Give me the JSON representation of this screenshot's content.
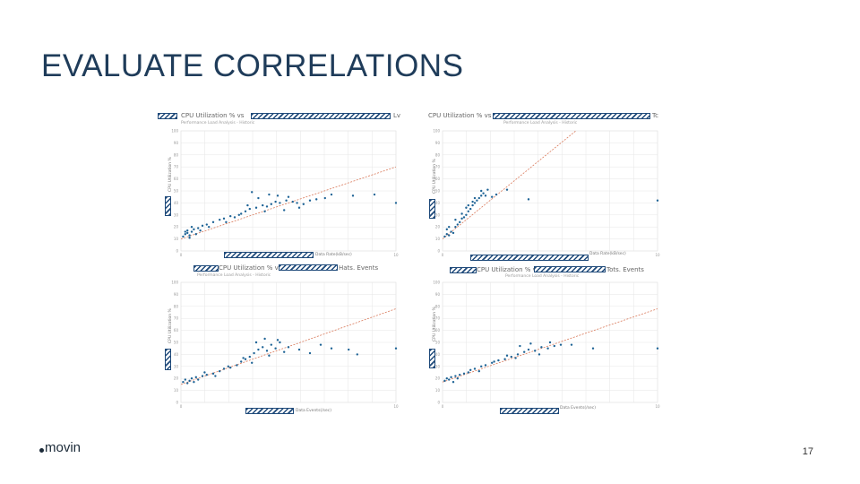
{
  "slide": {
    "title": "EVALUATE CORRELATIONS",
    "page_number": "17",
    "logo_text": "movin",
    "colors": {
      "title": "#1f3c5a",
      "points": "#1f6496",
      "trend": "#d9795a",
      "grid": "#e6e6e6",
      "redaction": "#1f4a7a"
    }
  },
  "charts": [
    {
      "title_prefix": "CPU Utilization % vs",
      "title_suffix": "Lv",
      "subtitle": "Performance Load Analysis - Historic",
      "ylabel": "CPU Utilization %",
      "xlabel": "Data Rate(kB/sec)"
    },
    {
      "title_prefix": "CPU Utilization % vs",
      "title_suffix": "Tc",
      "subtitle": "Performance Load Analysis - Historic",
      "ylabel": "CPU Utilization %",
      "xlabel": "Data Rate(kB/sec)"
    },
    {
      "title_prefix": "CPU Utilization % vs",
      "title_suffix": "Hats. Events",
      "subtitle": "Performance Load Analysis - Historic",
      "ylabel": "CPU Utilization %",
      "xlabel": "Data Events(/sec)"
    },
    {
      "title_prefix": "CPU Utilization % vs",
      "title_suffix": "Tots. Events",
      "subtitle": "Performance Load Analysis - Historic",
      "ylabel": "CPU Utilization %",
      "xlabel": "Data Events(/sec)"
    }
  ],
  "chart_data": [
    {
      "type": "scatter",
      "title": "CPU Utilization % vs",
      "ylabel": "CPU Utilization %",
      "xlabel": "Data Rate(kB/sec)",
      "xlim": [
        0,
        10
      ],
      "ylim": [
        0,
        100
      ],
      "x_ticks": [
        "0",
        "",
        "",
        "",
        "",
        "",
        "",
        "",
        "",
        "10"
      ],
      "y_ticks": [
        "0",
        "10",
        "20",
        "30",
        "40",
        "50",
        "60",
        "70",
        "80",
        "90",
        "100"
      ],
      "trend": {
        "x0": 0,
        "y0": 10,
        "x1": 10,
        "y1": 70
      },
      "points": [
        [
          0.1,
          12
        ],
        [
          0.2,
          14
        ],
        [
          0.3,
          15
        ],
        [
          0.4,
          13
        ],
        [
          0.5,
          16
        ],
        [
          0.3,
          17
        ],
        [
          0.6,
          18
        ],
        [
          0.4,
          11
        ],
        [
          0.2,
          16
        ],
        [
          0.7,
          14
        ],
        [
          0.8,
          19
        ],
        [
          0.5,
          20
        ],
        [
          0.9,
          17
        ],
        [
          1.2,
          22
        ],
        [
          1.5,
          24
        ],
        [
          1.8,
          26
        ],
        [
          2.0,
          27
        ],
        [
          2.3,
          29
        ],
        [
          2.5,
          28
        ],
        [
          2.8,
          31
        ],
        [
          3.0,
          33
        ],
        [
          3.2,
          35
        ],
        [
          3.5,
          36
        ],
        [
          3.8,
          38
        ],
        [
          4.0,
          37
        ],
        [
          4.2,
          39
        ],
        [
          4.4,
          41
        ],
        [
          4.6,
          40
        ],
        [
          4.9,
          42
        ],
        [
          5.2,
          41
        ],
        [
          5.4,
          40
        ],
        [
          5.7,
          39
        ],
        [
          6.0,
          42
        ],
        [
          6.3,
          43
        ],
        [
          6.7,
          44
        ],
        [
          3.3,
          49
        ],
        [
          3.6,
          44
        ],
        [
          4.1,
          47
        ],
        [
          4.5,
          46
        ],
        [
          5.0,
          45
        ],
        [
          7.0,
          47
        ],
        [
          8.0,
          46
        ],
        [
          9.0,
          47
        ],
        [
          10.0,
          40
        ],
        [
          1.0,
          21
        ],
        [
          1.3,
          20
        ],
        [
          2.1,
          24
        ],
        [
          2.7,
          30
        ],
        [
          3.1,
          38
        ],
        [
          3.9,
          33
        ],
        [
          4.8,
          34
        ],
        [
          5.5,
          36
        ]
      ]
    },
    {
      "type": "scatter",
      "title": "CPU Utilization % vs",
      "ylabel": "CPU Utilization %",
      "xlabel": "Data Rate(kB/sec)",
      "xlim": [
        0,
        10
      ],
      "ylim": [
        0,
        100
      ],
      "x_ticks": [
        "0",
        "",
        "",
        "",
        "",
        "",
        "",
        "",
        "",
        "10"
      ],
      "y_ticks": [
        "0",
        "10",
        "20",
        "30",
        "40",
        "50",
        "60",
        "70",
        "80",
        "90",
        "100"
      ],
      "trend": {
        "x0": 0,
        "y0": 10,
        "x1": 6.2,
        "y1": 100
      },
      "points": [
        [
          0.1,
          12
        ],
        [
          0.2,
          14
        ],
        [
          0.3,
          13
        ],
        [
          0.4,
          16
        ],
        [
          0.2,
          18
        ],
        [
          0.5,
          15
        ],
        [
          0.6,
          20
        ],
        [
          0.7,
          22
        ],
        [
          0.8,
          24
        ],
        [
          0.9,
          27
        ],
        [
          1.0,
          28
        ],
        [
          1.1,
          30
        ],
        [
          1.2,
          33
        ],
        [
          1.3,
          35
        ],
        [
          1.4,
          38
        ],
        [
          1.5,
          40
        ],
        [
          1.6,
          42
        ],
        [
          1.7,
          44
        ],
        [
          1.8,
          46
        ],
        [
          1.9,
          48
        ],
        [
          2.0,
          46
        ],
        [
          1.5,
          44
        ],
        [
          1.2,
          38
        ],
        [
          1.8,
          50
        ],
        [
          2.1,
          51
        ],
        [
          2.3,
          45
        ],
        [
          2.5,
          47
        ],
        [
          3.0,
          51
        ],
        [
          4.0,
          43
        ],
        [
          10.0,
          42
        ],
        [
          0.3,
          20
        ],
        [
          0.6,
          26
        ],
        [
          0.9,
          31
        ],
        [
          1.1,
          36
        ],
        [
          1.4,
          41
        ]
      ]
    },
    {
      "type": "scatter",
      "title": "CPU Utilization % vs",
      "ylabel": "CPU Utilization %",
      "xlabel": "Data Events(/sec)",
      "xlim": [
        0,
        10
      ],
      "ylim": [
        0,
        100
      ],
      "x_ticks": [
        "0",
        "",
        "",
        "",
        "",
        "",
        "",
        "",
        "",
        "10"
      ],
      "y_ticks": [
        "0",
        "10",
        "20",
        "30",
        "40",
        "50",
        "60",
        "70",
        "80",
        "90",
        "100"
      ],
      "trend": {
        "x0": 0,
        "y0": 15,
        "x1": 10,
        "y1": 78
      },
      "points": [
        [
          0.1,
          17
        ],
        [
          0.2,
          19
        ],
        [
          0.3,
          16
        ],
        [
          0.4,
          18
        ],
        [
          0.5,
          20
        ],
        [
          0.6,
          17
        ],
        [
          0.7,
          21
        ],
        [
          0.8,
          19
        ],
        [
          1.0,
          22
        ],
        [
          1.2,
          23
        ],
        [
          1.5,
          24
        ],
        [
          1.8,
          26
        ],
        [
          2.0,
          28
        ],
        [
          2.3,
          29
        ],
        [
          2.6,
          31
        ],
        [
          2.8,
          34
        ],
        [
          3.0,
          36
        ],
        [
          3.2,
          38
        ],
        [
          3.4,
          41
        ],
        [
          3.6,
          44
        ],
        [
          3.8,
          46
        ],
        [
          4.0,
          43
        ],
        [
          4.2,
          48
        ],
        [
          4.4,
          45
        ],
        [
          4.6,
          50
        ],
        [
          4.8,
          42
        ],
        [
          3.5,
          50
        ],
        [
          3.9,
          53
        ],
        [
          4.1,
          39
        ],
        [
          4.5,
          52
        ],
        [
          5.0,
          46
        ],
        [
          5.5,
          44
        ],
        [
          6.0,
          41
        ],
        [
          6.5,
          48
        ],
        [
          7.0,
          45
        ],
        [
          7.8,
          44
        ],
        [
          8.2,
          40
        ],
        [
          10.0,
          45
        ],
        [
          1.1,
          25
        ],
        [
          1.6,
          22
        ],
        [
          2.2,
          30
        ],
        [
          2.9,
          37
        ],
        [
          3.3,
          33
        ]
      ]
    },
    {
      "type": "scatter",
      "title": "CPU Utilization % vs",
      "ylabel": "CPU Utilization %",
      "xlabel": "Data Events(/sec)",
      "xlim": [
        0,
        10
      ],
      "ylim": [
        0,
        100
      ],
      "x_ticks": [
        "0",
        "",
        "",
        "",
        "",
        "",
        "",
        "",
        "",
        "10"
      ],
      "y_ticks": [
        "0",
        "10",
        "20",
        "30",
        "40",
        "50",
        "60",
        "70",
        "80",
        "90",
        "100"
      ],
      "trend": {
        "x0": 0,
        "y0": 17,
        "x1": 10,
        "y1": 78
      },
      "points": [
        [
          0.1,
          18
        ],
        [
          0.2,
          20
        ],
        [
          0.3,
          19
        ],
        [
          0.4,
          21
        ],
        [
          0.5,
          17
        ],
        [
          0.6,
          22
        ],
        [
          0.7,
          20
        ],
        [
          0.8,
          23
        ],
        [
          1.0,
          24
        ],
        [
          1.2,
          25
        ],
        [
          1.5,
          28
        ],
        [
          1.8,
          30
        ],
        [
          2.0,
          31
        ],
        [
          2.3,
          33
        ],
        [
          2.6,
          35
        ],
        [
          2.9,
          36
        ],
        [
          3.2,
          38
        ],
        [
          3.5,
          40
        ],
        [
          3.8,
          42
        ],
        [
          4.0,
          44
        ],
        [
          4.3,
          43
        ],
        [
          4.6,
          46
        ],
        [
          4.9,
          45
        ],
        [
          5.2,
          47
        ],
        [
          5.5,
          48
        ],
        [
          3.6,
          47
        ],
        [
          4.1,
          49
        ],
        [
          4.5,
          40
        ],
        [
          5.0,
          50
        ],
        [
          6.0,
          48
        ],
        [
          7.0,
          45
        ],
        [
          10.0,
          45
        ],
        [
          1.3,
          27
        ],
        [
          1.7,
          26
        ],
        [
          2.4,
          34
        ],
        [
          3.0,
          39
        ],
        [
          3.4,
          37
        ]
      ]
    }
  ]
}
